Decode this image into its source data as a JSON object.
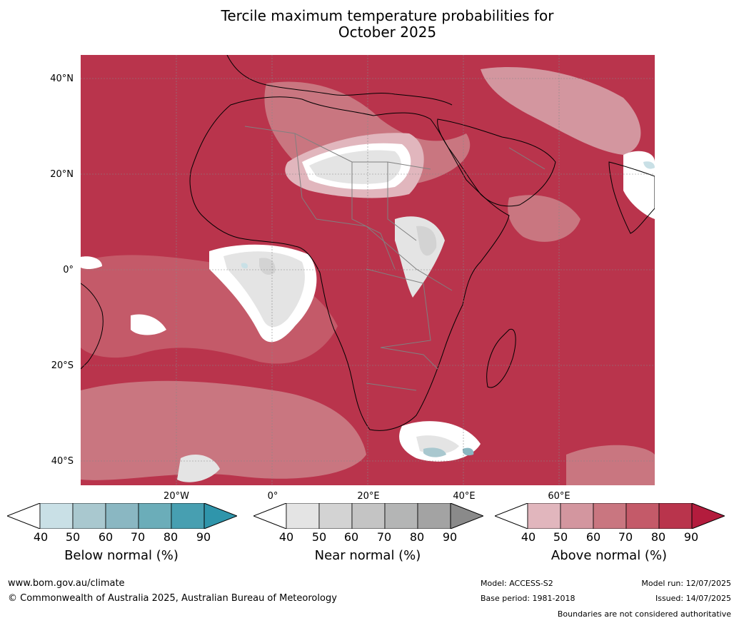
{
  "title_line1": "Tercile maximum temperature probabilities for",
  "title_line2": "October 2025",
  "lat_labels": [
    "40°N",
    "20°N",
    "0°",
    "20°S",
    "40°S"
  ],
  "lon_labels": [
    "20°W",
    "0°",
    "20°E",
    "40°E",
    "60°E"
  ],
  "colorbars": [
    {
      "title": "Below normal (%)",
      "ticks": [
        "40",
        "50",
        "60",
        "70",
        "80",
        "90"
      ],
      "colors": [
        "#ffffff",
        "#c9e0e6",
        "#a9c8cf",
        "#8ab7c2",
        "#6badb9",
        "#479fb1",
        "#2f95ab"
      ]
    },
    {
      "title": "Near normal (%)",
      "ticks": [
        "40",
        "50",
        "60",
        "70",
        "80",
        "90"
      ],
      "colors": [
        "#ffffff",
        "#e4e4e4",
        "#d3d3d3",
        "#c4c4c4",
        "#b4b5b5",
        "#a3a3a3",
        "#8a8a8a"
      ]
    },
    {
      "title": "Above normal (%)",
      "ticks": [
        "40",
        "50",
        "60",
        "70",
        "80",
        "90"
      ],
      "colors": [
        "#ffffff",
        "#e1b6bd",
        "#d3969f",
        "#c97680",
        "#c45a69",
        "#b9344c",
        "#b31c3d"
      ]
    }
  ],
  "footer": {
    "website": "www.bom.gov.au/climate",
    "copyright": "© Commonwealth of Australia 2025, Australian Bureau of Meteorology",
    "model": "Model: ACCESS-S2",
    "base_period": "Base period: 1981-2018",
    "model_run": "Model run: 12/07/2025",
    "issued": "Issued: 14/07/2025",
    "disclaimer": "Boundaries are not considered authoritative"
  }
}
